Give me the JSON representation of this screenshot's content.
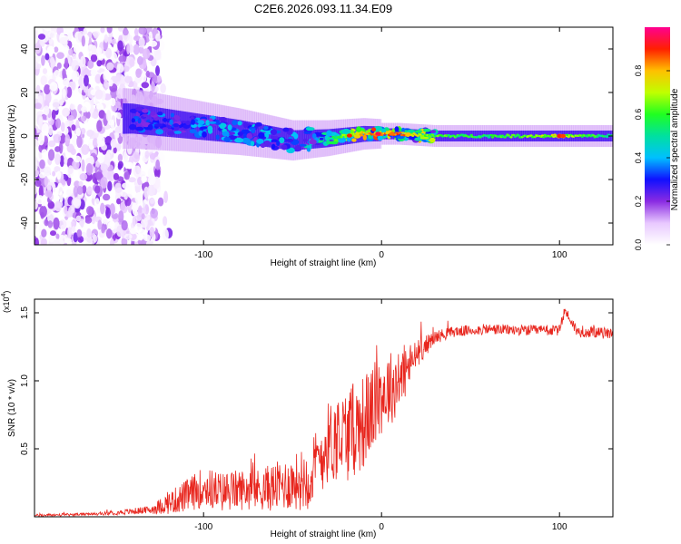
{
  "title": "C2E6.2026.093.11.34.E09",
  "chart_data": [
    {
      "type": "heatmap",
      "title": "C2E6.2026.093.11.34.E09",
      "xlabel": "Height of straight line (km)",
      "ylabel": "Frequency (Hz)",
      "xlim": [
        -195,
        130
      ],
      "ylim": [
        -50,
        50
      ],
      "x_ticks": [
        "-100",
        "0",
        "100"
      ],
      "y_ticks": [
        "40",
        "20",
        "0",
        "-20",
        "-40"
      ],
      "colorbar": {
        "label": "Normalized spectral amplitude",
        "range": [
          0,
          1
        ],
        "ticks": [
          "0.0",
          "0.2",
          "0.4",
          "0.6",
          "0.8"
        ],
        "colors": [
          "#ffffff",
          "#e8c8ff",
          "#8a2be2",
          "#1010ff",
          "#00c0ff",
          "#00e0a0",
          "#20ff20",
          "#c0ff00",
          "#ffc000",
          "#ff2000",
          "#ff0090"
        ]
      },
      "ridge": {
        "description_points": [
          {
            "x": -140,
            "f": 8,
            "amp": 0.25
          },
          {
            "x": -110,
            "f": 5,
            "amp": 0.3
          },
          {
            "x": -80,
            "f": 2,
            "amp": 0.35
          },
          {
            "x": -50,
            "f": -2,
            "amp": 0.35
          },
          {
            "x": -30,
            "f": -1,
            "amp": 0.5
          },
          {
            "x": -10,
            "f": 1,
            "amp": 0.8
          },
          {
            "x": 10,
            "f": 1,
            "amp": 0.85
          },
          {
            "x": 30,
            "f": 0,
            "amp": 0.6
          },
          {
            "x": 60,
            "f": 0,
            "amp": 0.55
          },
          {
            "x": 100,
            "f": 0,
            "amp": 0.7
          },
          {
            "x": 130,
            "f": 0,
            "amp": 0.5
          }
        ],
        "noise_region_x": [
          -195,
          -125
        ]
      }
    },
    {
      "type": "line",
      "xlabel": "Height of straight line (km)",
      "ylabel": "SNR (10 * v/v)",
      "y_multiplier": "(x10",
      "y_multiplier_exp": "4",
      "y_multiplier_close": ")",
      "xlim": [
        -195,
        130
      ],
      "ylim": [
        0,
        1.6
      ],
      "x_ticks": [
        "-100",
        "0",
        "100"
      ],
      "y_ticks": [
        "1.5",
        "1.0",
        "0.5"
      ],
      "series": [
        {
          "name": "SNR",
          "color": "#e8261e",
          "x": [
            -195,
            -160,
            -130,
            -120,
            -110,
            -100,
            -90,
            -80,
            -70,
            -60,
            -50,
            -40,
            -30,
            -20,
            -10,
            0,
            10,
            20,
            30,
            40,
            60,
            80,
            100,
            103,
            110,
            130
          ],
          "values": [
            0.01,
            0.02,
            0.05,
            0.1,
            0.15,
            0.22,
            0.18,
            0.2,
            0.2,
            0.22,
            0.25,
            0.3,
            0.55,
            0.6,
            0.7,
            0.9,
            1.0,
            1.2,
            1.32,
            1.36,
            1.38,
            1.37,
            1.37,
            1.52,
            1.36,
            1.35
          ],
          "noise_amplitude": [
            0.01,
            0.01,
            0.03,
            0.08,
            0.12,
            0.15,
            0.15,
            0.15,
            0.15,
            0.18,
            0.2,
            0.25,
            0.3,
            0.35,
            0.35,
            0.3,
            0.25,
            0.1,
            0.05,
            0.04,
            0.04,
            0.04,
            0.04,
            0.04,
            0.04,
            0.04
          ]
        }
      ]
    }
  ]
}
